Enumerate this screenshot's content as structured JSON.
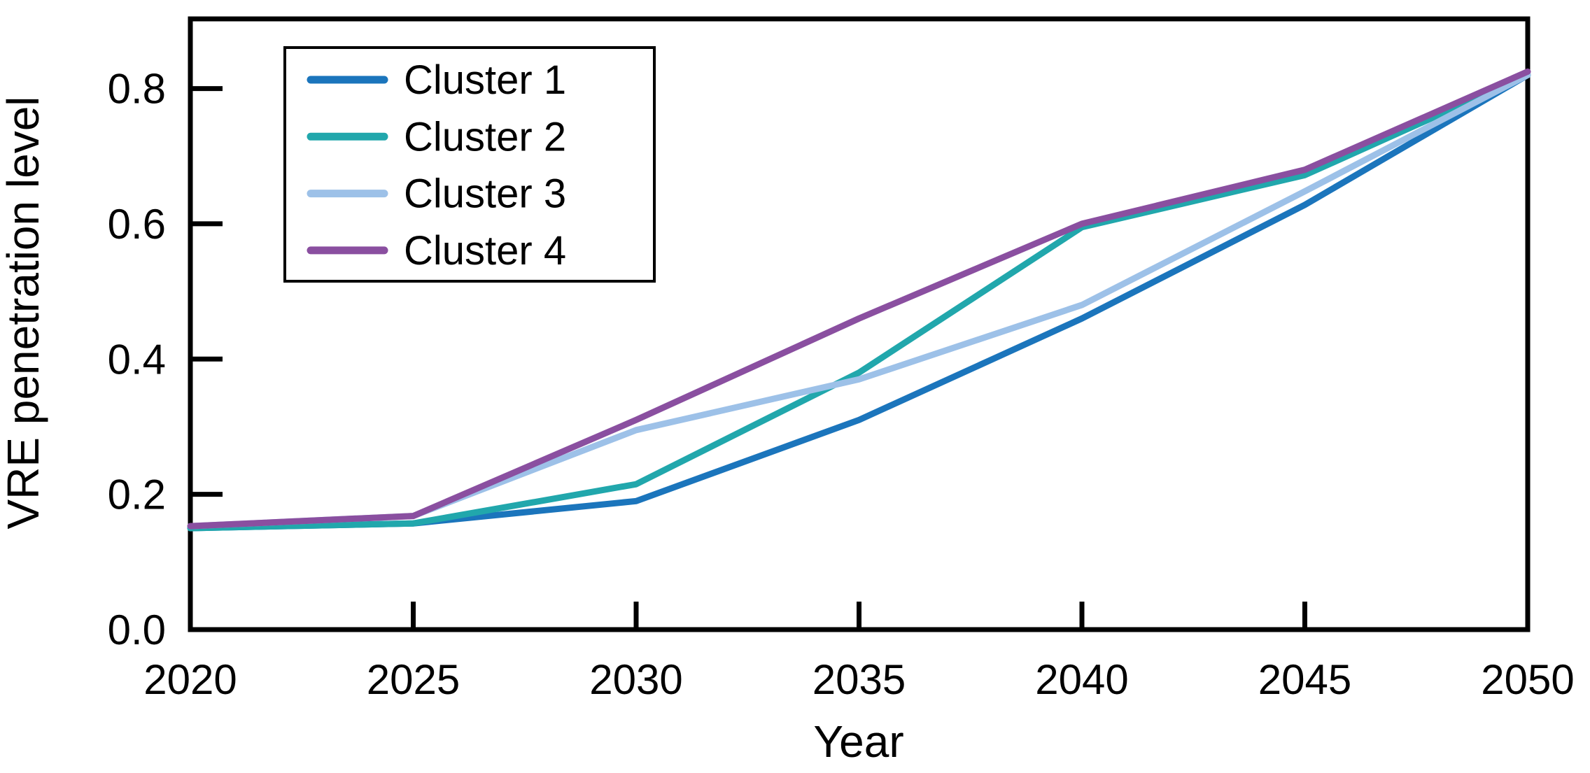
{
  "figure": {
    "background": "#ffffff",
    "frame_color": "#000000"
  },
  "chart_data": {
    "type": "line",
    "title": "",
    "xlabel": "Year",
    "ylabel": "VRE penetration level",
    "x": [
      2020,
      2025,
      2030,
      2035,
      2040,
      2045,
      2050
    ],
    "x_tick_labels": [
      "2020",
      "2025",
      "2030",
      "2035",
      "2040",
      "2045",
      "2050"
    ],
    "y_ticks": [
      0.0,
      0.2,
      0.4,
      0.6,
      0.8
    ],
    "y_tick_labels": [
      "0.0",
      "0.2",
      "0.4",
      "0.6",
      "0.8"
    ],
    "xlim": [
      2020,
      2050
    ],
    "ylim": [
      0,
      0.903
    ],
    "grid": false,
    "legend_position": "upper-left-inside",
    "series": [
      {
        "name": "Cluster 1",
        "color": "#1b75bc",
        "values": [
          0.15,
          0.157,
          0.19,
          0.31,
          0.46,
          0.628,
          0.82
        ]
      },
      {
        "name": "Cluster 2",
        "color": "#21a7ac",
        "values": [
          0.15,
          0.157,
          0.215,
          0.38,
          0.595,
          0.672,
          0.82
        ]
      },
      {
        "name": "Cluster 3",
        "color": "#9dc1e8",
        "values": [
          0.153,
          0.168,
          0.295,
          0.37,
          0.48,
          0.648,
          0.82
        ]
      },
      {
        "name": "Cluster 4",
        "color": "#8a4fa0",
        "values": [
          0.153,
          0.168,
          0.31,
          0.46,
          0.6,
          0.68,
          0.825
        ]
      }
    ]
  }
}
